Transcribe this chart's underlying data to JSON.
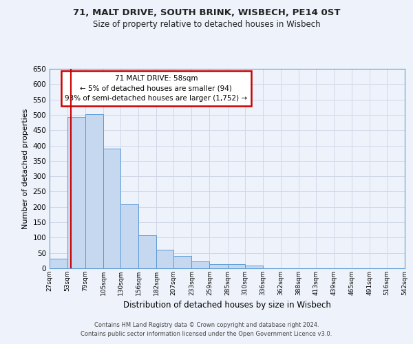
{
  "title": "71, MALT DRIVE, SOUTH BRINK, WISBECH, PE14 0ST",
  "subtitle": "Size of property relative to detached houses in Wisbech",
  "xlabel": "Distribution of detached houses by size in Wisbech",
  "ylabel": "Number of detached properties",
  "bin_edges": [
    27,
    53,
    79,
    105,
    130,
    156,
    182,
    207,
    233,
    259,
    285,
    310,
    336,
    362,
    388,
    413,
    439,
    465,
    491,
    516,
    542
  ],
  "bar_heights": [
    32,
    492,
    503,
    390,
    208,
    107,
    60,
    40,
    22,
    13,
    13,
    10,
    1,
    1,
    1,
    1,
    0,
    0,
    0,
    1
  ],
  "bar_color": "#c5d8f0",
  "bar_edge_color": "#5b9bd5",
  "grid_color": "#d0d8e8",
  "background_color": "#eef2fa",
  "red_line_x": 58,
  "annotation_title": "71 MALT DRIVE: 58sqm",
  "annotation_line1": "← 5% of detached houses are smaller (94)",
  "annotation_line2": "93% of semi-detached houses are larger (1,752) →",
  "annotation_box_color": "#ffffff",
  "annotation_edge_color": "#cc0000",
  "red_line_color": "#cc0000",
  "ylim": [
    0,
    650
  ],
  "tick_labels": [
    "27sqm",
    "53sqm",
    "79sqm",
    "105sqm",
    "130sqm",
    "156sqm",
    "182sqm",
    "207sqm",
    "233sqm",
    "259sqm",
    "285sqm",
    "310sqm",
    "336sqm",
    "362sqm",
    "388sqm",
    "413sqm",
    "439sqm",
    "465sqm",
    "491sqm",
    "516sqm",
    "542sqm"
  ],
  "yticks": [
    0,
    50,
    100,
    150,
    200,
    250,
    300,
    350,
    400,
    450,
    500,
    550,
    600,
    650
  ],
  "footer1": "Contains HM Land Registry data © Crown copyright and database right 2024.",
  "footer2": "Contains public sector information licensed under the Open Government Licence v3.0."
}
